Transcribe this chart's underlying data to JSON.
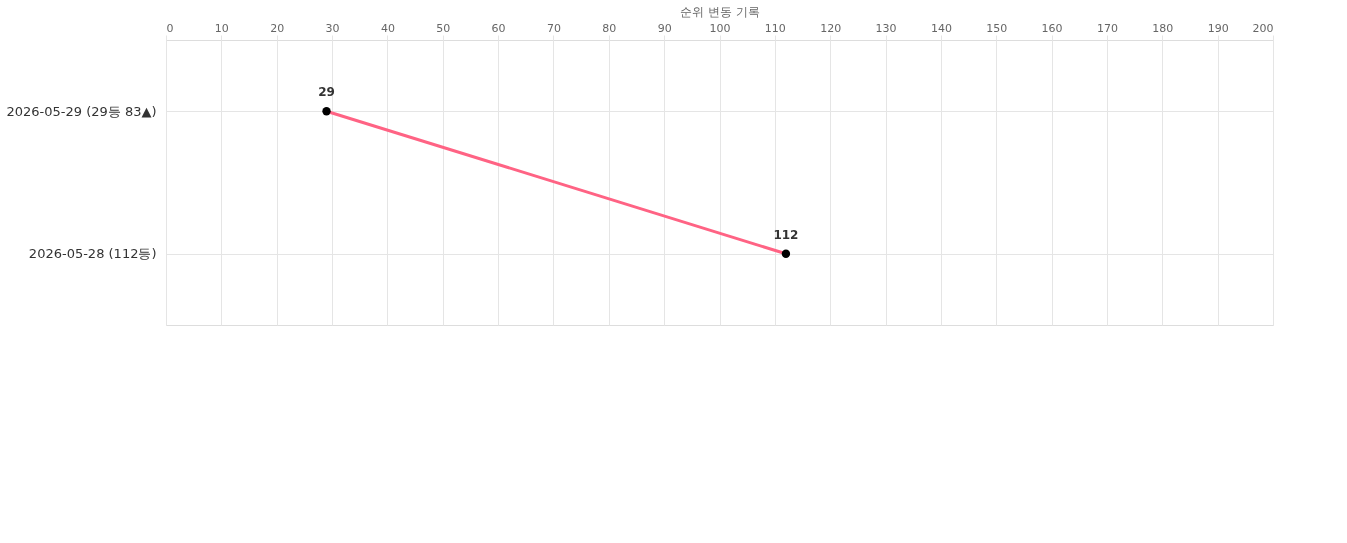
{
  "chart_data": {
    "type": "line",
    "orientation": "horizontal",
    "xlabel": "순위 변동 기록",
    "categories": [
      "2026-05-29 (29등 83▲)",
      "2026-05-28 (112등)"
    ],
    "series": [
      {
        "color": "#ff6384",
        "values": [
          29,
          112
        ]
      }
    ],
    "xlim": [
      0,
      200
    ],
    "xticks": [
      0,
      10,
      20,
      30,
      40,
      50,
      60,
      70,
      80,
      90,
      100,
      110,
      120,
      130,
      140,
      150,
      160,
      170,
      180,
      190,
      200
    ],
    "grid": true,
    "marker": "circle",
    "data_labels": true
  }
}
